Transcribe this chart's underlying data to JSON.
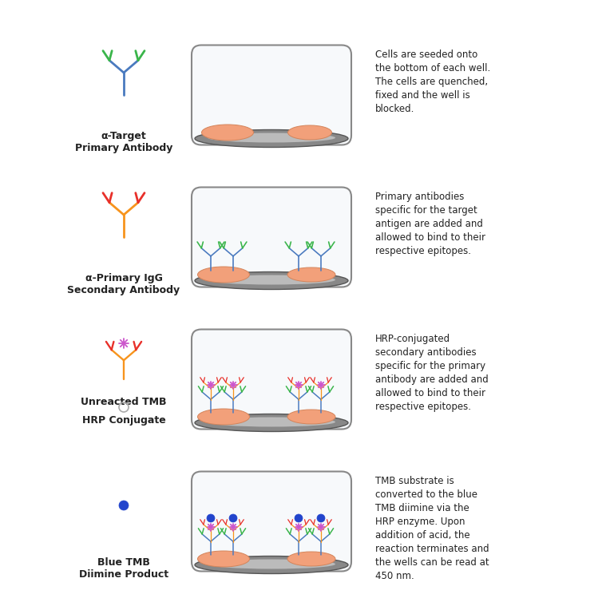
{
  "background_color": "#ffffff",
  "rows": [
    {
      "legend_label": "α-Target\nPrimary Antibody",
      "description": "Cells are seeded onto\nthe bottom of each well.\nThe cells are quenched,\nfixed and the well is\nblocked.",
      "well_contents": "cells_only"
    },
    {
      "legend_label": "α-Primary IgG\nSecondary Antibody",
      "description": "Primary antibodies\nspecific for the target\nantigen are added and\nallowed to bind to their\nrespective epitopes.",
      "well_contents": "cells_primary"
    },
    {
      "legend_label": "HRP Conjugate",
      "legend_label2": "Unreacted TMB",
      "description": "HRP-conjugated\nsecondary antibodies\nspecific for the primary\nantibody are added and\nallowed to bind to their\nrespective epitopes.",
      "well_contents": "cells_hrp"
    },
    {
      "legend_label": "Blue TMB\nDiimine Product",
      "description": "TMB substrate is\nconverted to the blue\nTMB diimine via the\nHRP enzyme. Upon\naddition of acid, the\nreaction terminates and\nthe wells can be read at\n450 nm.",
      "well_contents": "cells_blue_tmb"
    }
  ],
  "primary_arm_color": "#4a7abf",
  "primary_top_color": "#3ab54a",
  "secondary_arm_color": "#f7941d",
  "secondary_top_color": "#e8302a",
  "hrp_color": "#cc55cc",
  "tmb_unreacted_color": "#aaaaaa",
  "tmb_blue_color": "#2244cc",
  "cell_fill": "#f2a07a",
  "cell_edge": "#d4845a",
  "well_fill": "#f7f9fb",
  "well_edge": "#888888",
  "well_bottom_fill": "#aaaaaa",
  "text_color": "#222222",
  "desc_font_size": 8.5,
  "label_font_size": 9.0
}
